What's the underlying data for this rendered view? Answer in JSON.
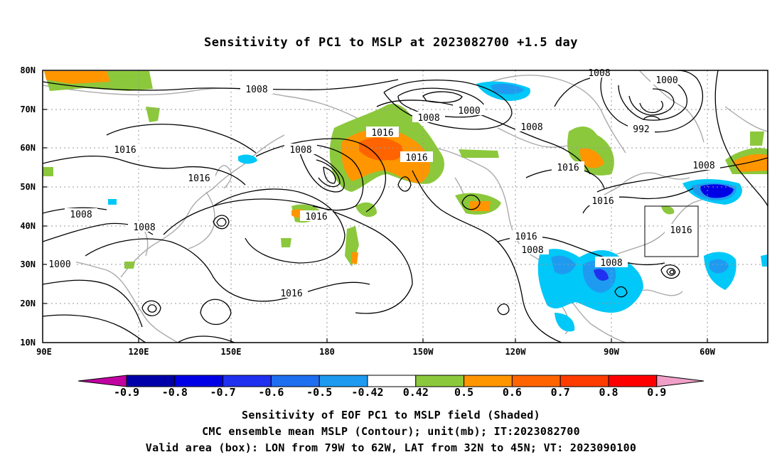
{
  "title": "Sensitivity of PC1 to MSLP at 2023082700 +1.5 day",
  "map": {
    "lon_range": [
      "90E",
      "30W"
    ],
    "lat_range": [
      "10N",
      "80N"
    ],
    "lat_ticks": [
      "80N",
      "70N",
      "60N",
      "50N",
      "40N",
      "30N",
      "20N",
      "10N"
    ],
    "lon_ticks": [
      "90E",
      "120E",
      "150E",
      "180",
      "150W",
      "120W",
      "90W",
      "60W"
    ],
    "contour_labels": [
      "1008",
      "1008",
      "1000",
      "1008",
      "1000",
      "992",
      "1016",
      "1008",
      "1016",
      "1016",
      "1016",
      "1016",
      "1016",
      "1016",
      "1008",
      "1016",
      "1016",
      "1016",
      "1008",
      "1008",
      "1008",
      "1000",
      "1008",
      "1008"
    ],
    "valid_box": {
      "lon": [
        "79W",
        "62W"
      ],
      "lat": [
        "32N",
        "45N"
      ]
    }
  },
  "colorbar": {
    "ticks": [
      "-0.9",
      "-0.8",
      "-0.7",
      "-0.6",
      "-0.5",
      "-0.42",
      "0.42",
      "0.5",
      "0.6",
      "0.7",
      "0.8",
      "0.9"
    ],
    "colors": [
      "#c000a0",
      "#0000a8",
      "#0000e6",
      "#2030f0",
      "#1e6ef0",
      "#1e9bf0",
      "#00c8f8",
      "#ffffff",
      "#8cc83c",
      "#ff9600",
      "#ff6400",
      "#ff3c00",
      "#ff0000",
      "#f0a0c8"
    ]
  },
  "captions": [
    "Sensitivity of EOF PC1 to MSLP field (Shaded)",
    "CMC ensemble mean MSLP (Contour); unit(mb); IT:2023082700",
    "Valid area (box): LON from 79W to 62W, LAT from 32N to 45N; VT: 2023090100"
  ]
}
